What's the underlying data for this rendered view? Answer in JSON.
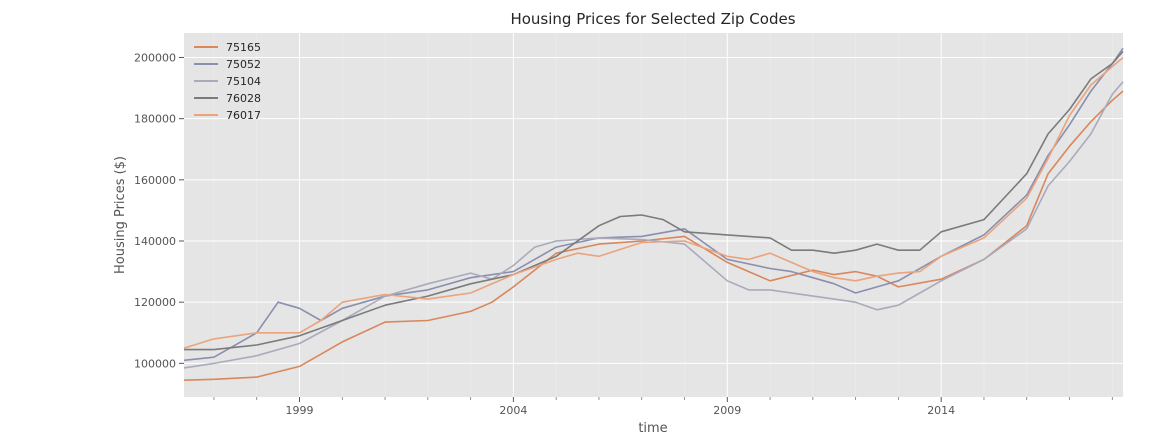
{
  "colors": {
    "panel_bg": "#e5e5e5",
    "grid": "#ffffff",
    "tick_text": "#555555",
    "title_text": "#262626"
  },
  "chart_data": {
    "type": "line",
    "title": "Housing Prices for Selected Zip Codes",
    "xlabel": "time",
    "ylabel": "Housing Prices ($)",
    "xlim": [
      1996.3,
      2018.25
    ],
    "ylim": [
      89000,
      208000
    ],
    "grid": true,
    "legend_position": "top-left",
    "x_ticks": [
      {
        "value": 1999,
        "label": "1999"
      },
      {
        "value": 2004,
        "label": "2004"
      },
      {
        "value": 2009,
        "label": "2009"
      },
      {
        "value": 2014,
        "label": "2014"
      }
    ],
    "y_ticks": [
      {
        "value": 100000,
        "label": "100000"
      },
      {
        "value": 120000,
        "label": "120000"
      },
      {
        "value": 140000,
        "label": "140000"
      },
      {
        "value": 160000,
        "label": "160000"
      },
      {
        "value": 180000,
        "label": "180000"
      },
      {
        "value": 200000,
        "label": "200000"
      }
    ],
    "series": [
      {
        "name": "75165",
        "color": "#d9875b",
        "points": [
          [
            1996.3,
            94500
          ],
          [
            1997,
            94800
          ],
          [
            1998,
            95500
          ],
          [
            1999,
            99000
          ],
          [
            2000,
            107000
          ],
          [
            2001,
            113500
          ],
          [
            2002,
            114000
          ],
          [
            2003,
            117000
          ],
          [
            2003.5,
            120000
          ],
          [
            2004,
            125000
          ],
          [
            2005,
            136000
          ],
          [
            2006,
            139000
          ],
          [
            2007,
            140000
          ],
          [
            2008,
            141500
          ],
          [
            2009,
            133000
          ],
          [
            2009.5,
            130000
          ],
          [
            2010,
            127000
          ],
          [
            2011,
            130500
          ],
          [
            2011.5,
            129000
          ],
          [
            2012,
            130000
          ],
          [
            2012.5,
            128500
          ],
          [
            2013,
            125000
          ],
          [
            2014,
            127500
          ],
          [
            2015,
            134000
          ],
          [
            2016,
            145000
          ],
          [
            2016.5,
            162000
          ],
          [
            2017,
            171000
          ],
          [
            2017.5,
            179000
          ],
          [
            2018,
            186000
          ],
          [
            2018.25,
            189000
          ]
        ]
      },
      {
        "name": "75052",
        "color": "#8a8fad",
        "points": [
          [
            1996.3,
            101000
          ],
          [
            1997,
            102000
          ],
          [
            1998,
            110000
          ],
          [
            1998.5,
            120000
          ],
          [
            1999,
            118000
          ],
          [
            1999.5,
            114000
          ],
          [
            2000,
            118000
          ],
          [
            2001,
            122000
          ],
          [
            2002,
            124000
          ],
          [
            2003,
            128000
          ],
          [
            2004,
            130000
          ],
          [
            2005,
            138000
          ],
          [
            2006,
            141000
          ],
          [
            2007,
            141500
          ],
          [
            2008,
            144000
          ],
          [
            2008.5,
            139000
          ],
          [
            2009,
            134000
          ],
          [
            2010,
            131000
          ],
          [
            2010.5,
            130000
          ],
          [
            2011,
            128000
          ],
          [
            2011.5,
            126000
          ],
          [
            2012,
            123000
          ],
          [
            2013,
            127000
          ],
          [
            2014,
            135000
          ],
          [
            2015,
            142000
          ],
          [
            2016,
            155000
          ],
          [
            2016.5,
            168000
          ],
          [
            2017,
            178000
          ],
          [
            2017.5,
            189000
          ],
          [
            2018,
            198000
          ],
          [
            2018.25,
            203000
          ]
        ]
      },
      {
        "name": "75104",
        "color": "#a9abbd",
        "points": [
          [
            1996.3,
            98500
          ],
          [
            1997,
            100000
          ],
          [
            1998,
            102500
          ],
          [
            1999,
            106500
          ],
          [
            2000,
            114000
          ],
          [
            2001,
            122000
          ],
          [
            2002,
            126000
          ],
          [
            2003,
            129500
          ],
          [
            2003.5,
            127500
          ],
          [
            2004,
            132000
          ],
          [
            2004.5,
            138000
          ],
          [
            2005,
            140000
          ],
          [
            2006,
            141000
          ],
          [
            2007,
            140500
          ],
          [
            2008,
            139000
          ],
          [
            2009,
            127000
          ],
          [
            2009.5,
            124000
          ],
          [
            2010,
            124000
          ],
          [
            2011,
            122000
          ],
          [
            2011.5,
            121000
          ],
          [
            2012,
            120000
          ],
          [
            2012.5,
            117500
          ],
          [
            2013,
            119000
          ],
          [
            2013.5,
            123000
          ],
          [
            2014,
            127000
          ],
          [
            2015,
            134000
          ],
          [
            2016,
            144000
          ],
          [
            2016.5,
            158000
          ],
          [
            2017,
            166000
          ],
          [
            2017.5,
            175000
          ],
          [
            2018,
            188000
          ],
          [
            2018.25,
            192000
          ]
        ]
      },
      {
        "name": "76028",
        "color": "#7b7b7b",
        "points": [
          [
            1996.3,
            104500
          ],
          [
            1997,
            104500
          ],
          [
            1998,
            106000
          ],
          [
            1999,
            109000
          ],
          [
            2000,
            114000
          ],
          [
            2001,
            119000
          ],
          [
            2002,
            122000
          ],
          [
            2003,
            126000
          ],
          [
            2004,
            129000
          ],
          [
            2005,
            135000
          ],
          [
            2006,
            145000
          ],
          [
            2006.5,
            148000
          ],
          [
            2007,
            148500
          ],
          [
            2007.5,
            147000
          ],
          [
            2008,
            143000
          ],
          [
            2009,
            142000
          ],
          [
            2010,
            141000
          ],
          [
            2010.5,
            137000
          ],
          [
            2011,
            137000
          ],
          [
            2011.5,
            136000
          ],
          [
            2012,
            137000
          ],
          [
            2012.5,
            139000
          ],
          [
            2013,
            137000
          ],
          [
            2013.5,
            137000
          ],
          [
            2014,
            143000
          ],
          [
            2015,
            147000
          ],
          [
            2016,
            162000
          ],
          [
            2016.5,
            175000
          ],
          [
            2017,
            183000
          ],
          [
            2017.5,
            193000
          ],
          [
            2018,
            198000
          ],
          [
            2018.25,
            202000
          ]
        ]
      },
      {
        "name": "76017",
        "color": "#eaa37c",
        "points": [
          [
            1996.3,
            105000
          ],
          [
            1997,
            108000
          ],
          [
            1998,
            110000
          ],
          [
            1999,
            110000
          ],
          [
            1999.5,
            114000
          ],
          [
            2000,
            120000
          ],
          [
            2001,
            122500
          ],
          [
            2002,
            121000
          ],
          [
            2003,
            123000
          ],
          [
            2004,
            129000
          ],
          [
            2005,
            134000
          ],
          [
            2005.5,
            136000
          ],
          [
            2006,
            135000
          ],
          [
            2007,
            139500
          ],
          [
            2008,
            140000
          ],
          [
            2009,
            135000
          ],
          [
            2009.5,
            134000
          ],
          [
            2010,
            136000
          ],
          [
            2011,
            130000
          ],
          [
            2011.5,
            128000
          ],
          [
            2012,
            127000
          ],
          [
            2012.5,
            128500
          ],
          [
            2013,
            129500
          ],
          [
            2013.5,
            130000
          ],
          [
            2014,
            135000
          ],
          [
            2015,
            141000
          ],
          [
            2016,
            154000
          ],
          [
            2016.5,
            167000
          ],
          [
            2017,
            181000
          ],
          [
            2017.5,
            191000
          ],
          [
            2018,
            197000
          ],
          [
            2018.25,
            200000
          ]
        ]
      }
    ]
  }
}
